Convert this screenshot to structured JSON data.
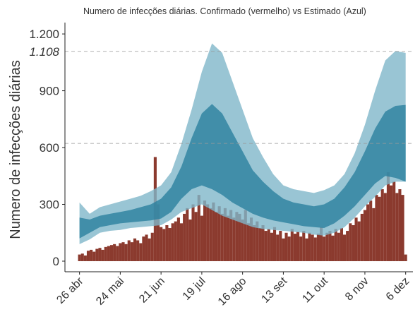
{
  "chart_data": {
    "type": "bar",
    "title": "Numero de infecções diárias. Confirmado (vermelho) vs Estimado (Azul)",
    "ylabel": "Numero de infecções diárias",
    "x": [
      0,
      2,
      4,
      6,
      8,
      10,
      12,
      14,
      16,
      18,
      20,
      22,
      24,
      26,
      28,
      30,
      32,
      34,
      36,
      38,
      40,
      42,
      44,
      46,
      48,
      50,
      52,
      54,
      56,
      58,
      60,
      62,
      64,
      66,
      68,
      70,
      72,
      74,
      76,
      78,
      80,
      82,
      84,
      86,
      88,
      90,
      92,
      94,
      96,
      98,
      100,
      102,
      104,
      106,
      108,
      110,
      112,
      114,
      116,
      118,
      120,
      122,
      124,
      126,
      128,
      130,
      132,
      134,
      136,
      138,
      140,
      142,
      144,
      146,
      148,
      150,
      152,
      154,
      156,
      158,
      160,
      162,
      164,
      166,
      168,
      170,
      172,
      174,
      176,
      178,
      180,
      182,
      184,
      186,
      188,
      190,
      192,
      194,
      196,
      198,
      200,
      202,
      204,
      206,
      208,
      210,
      212,
      214,
      216,
      218,
      220,
      222,
      224
    ],
    "values": [
      35,
      40,
      30,
      55,
      60,
      50,
      65,
      70,
      60,
      75,
      80,
      85,
      90,
      80,
      95,
      100,
      90,
      110,
      100,
      120,
      110,
      95,
      130,
      140,
      120,
      150,
      550,
      300,
      180,
      170,
      190,
      175,
      200,
      210,
      230,
      200,
      250,
      280,
      220,
      300,
      260,
      350,
      240,
      320,
      300,
      280,
      310,
      260,
      290,
      250,
      280,
      240,
      270,
      230,
      260,
      250,
      220,
      270,
      200,
      230,
      190,
      210,
      175,
      190,
      160,
      170,
      150,
      180,
      140,
      160,
      120,
      150,
      130,
      170,
      145,
      155,
      130,
      160,
      120,
      150,
      140,
      125,
      145,
      180,
      130,
      150,
      160,
      135,
      170,
      150,
      175,
      140,
      160,
      200,
      190,
      230,
      210,
      250,
      270,
      300,
      320,
      280,
      350,
      340,
      380,
      360,
      470,
      400,
      420,
      360,
      380,
      350,
      35
    ],
    "color": "#8b3a2e",
    "band_x": [
      0,
      7,
      14,
      21,
      28,
      35,
      42,
      49,
      56,
      63,
      70,
      77,
      84,
      91,
      98,
      105,
      112,
      119,
      126,
      133,
      140,
      147,
      154,
      161,
      168,
      175,
      182,
      189,
      196,
      203,
      210,
      217,
      224
    ],
    "bands": [
      {
        "color": "#7fb6c9",
        "low": [
          90,
          115,
          150,
          160,
          165,
          175,
          180,
          185,
          190,
          220,
          260,
          280,
          300,
          270,
          240,
          220,
          200,
          180,
          170,
          165,
          160,
          155,
          150,
          140,
          135,
          150,
          180,
          230,
          290,
          340,
          400,
          420,
          420
        ],
        "high": [
          310,
          250,
          285,
          300,
          315,
          330,
          345,
          370,
          400,
          470,
          620,
          800,
          1000,
          1150,
          1100,
          950,
          800,
          650,
          550,
          460,
          400,
          380,
          370,
          360,
          375,
          400,
          460,
          570,
          720,
          900,
          1060,
          1110,
          1100
        ]
      },
      {
        "color": "#2a7f9e",
        "low": [
          120,
          150,
          180,
          190,
          200,
          205,
          210,
          215,
          225,
          260,
          330,
          380,
          400,
          380,
          350,
          310,
          280,
          250,
          230,
          215,
          205,
          195,
          185,
          180,
          175,
          200,
          240,
          290,
          350,
          410,
          450,
          440,
          420
        ],
        "high": [
          230,
          220,
          240,
          250,
          260,
          270,
          285,
          300,
          330,
          390,
          500,
          650,
          780,
          830,
          780,
          680,
          580,
          480,
          420,
          370,
          330,
          310,
          300,
          290,
          300,
          330,
          390,
          470,
          580,
          700,
          790,
          820,
          825
        ]
      }
    ],
    "xlim": [
      -10,
      229
    ],
    "xticks": [
      {
        "value": 0,
        "label": "26 abr"
      },
      {
        "value": 28,
        "label": "24 mai"
      },
      {
        "value": 56,
        "label": "21 jun"
      },
      {
        "value": 84,
        "label": "19 jul"
      },
      {
        "value": 112,
        "label": "16 ago"
      },
      {
        "value": 140,
        "label": "13 set"
      },
      {
        "value": 168,
        "label": "11 out"
      },
      {
        "value": 196,
        "label": "8 nov"
      },
      {
        "value": 224,
        "label": "6 dez"
      }
    ],
    "ylim": [
      -56,
      1260
    ],
    "yticks": [
      0,
      300,
      600,
      900,
      {
        "value": 1200,
        "label": "1.200"
      }
    ],
    "hlines": [
      {
        "value": 1108,
        "label": "1.108"
      },
      {
        "value": 622
      }
    ]
  }
}
